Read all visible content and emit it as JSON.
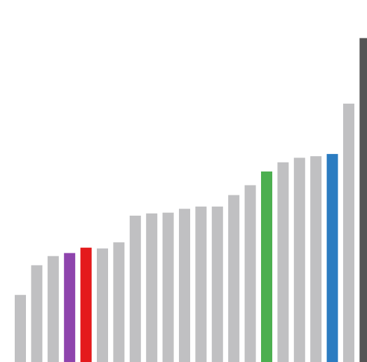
{
  "chart_data": {
    "type": "bar",
    "title": "",
    "xlabel": "",
    "ylabel": "",
    "categories": [
      "",
      "",
      "",
      "",
      "",
      "",
      "",
      "",
      "",
      "",
      "",
      "",
      "",
      "",
      "",
      "",
      "",
      "",
      "",
      "",
      "",
      ""
    ],
    "values": [
      88,
      127,
      139,
      143,
      150,
      149,
      157,
      192,
      195,
      196,
      201,
      204,
      204,
      219,
      232,
      250,
      262,
      268,
      270,
      273,
      339,
      425
    ],
    "highlights": {
      "3": "#8e44ad",
      "4": "#e41a1c",
      "15": "#4caf50",
      "19": "#2b7cc1",
      "21": "#555555"
    },
    "default_color": "#c0c0c2",
    "ylim": [
      0,
      475
    ],
    "grid": false,
    "legend": "none"
  }
}
